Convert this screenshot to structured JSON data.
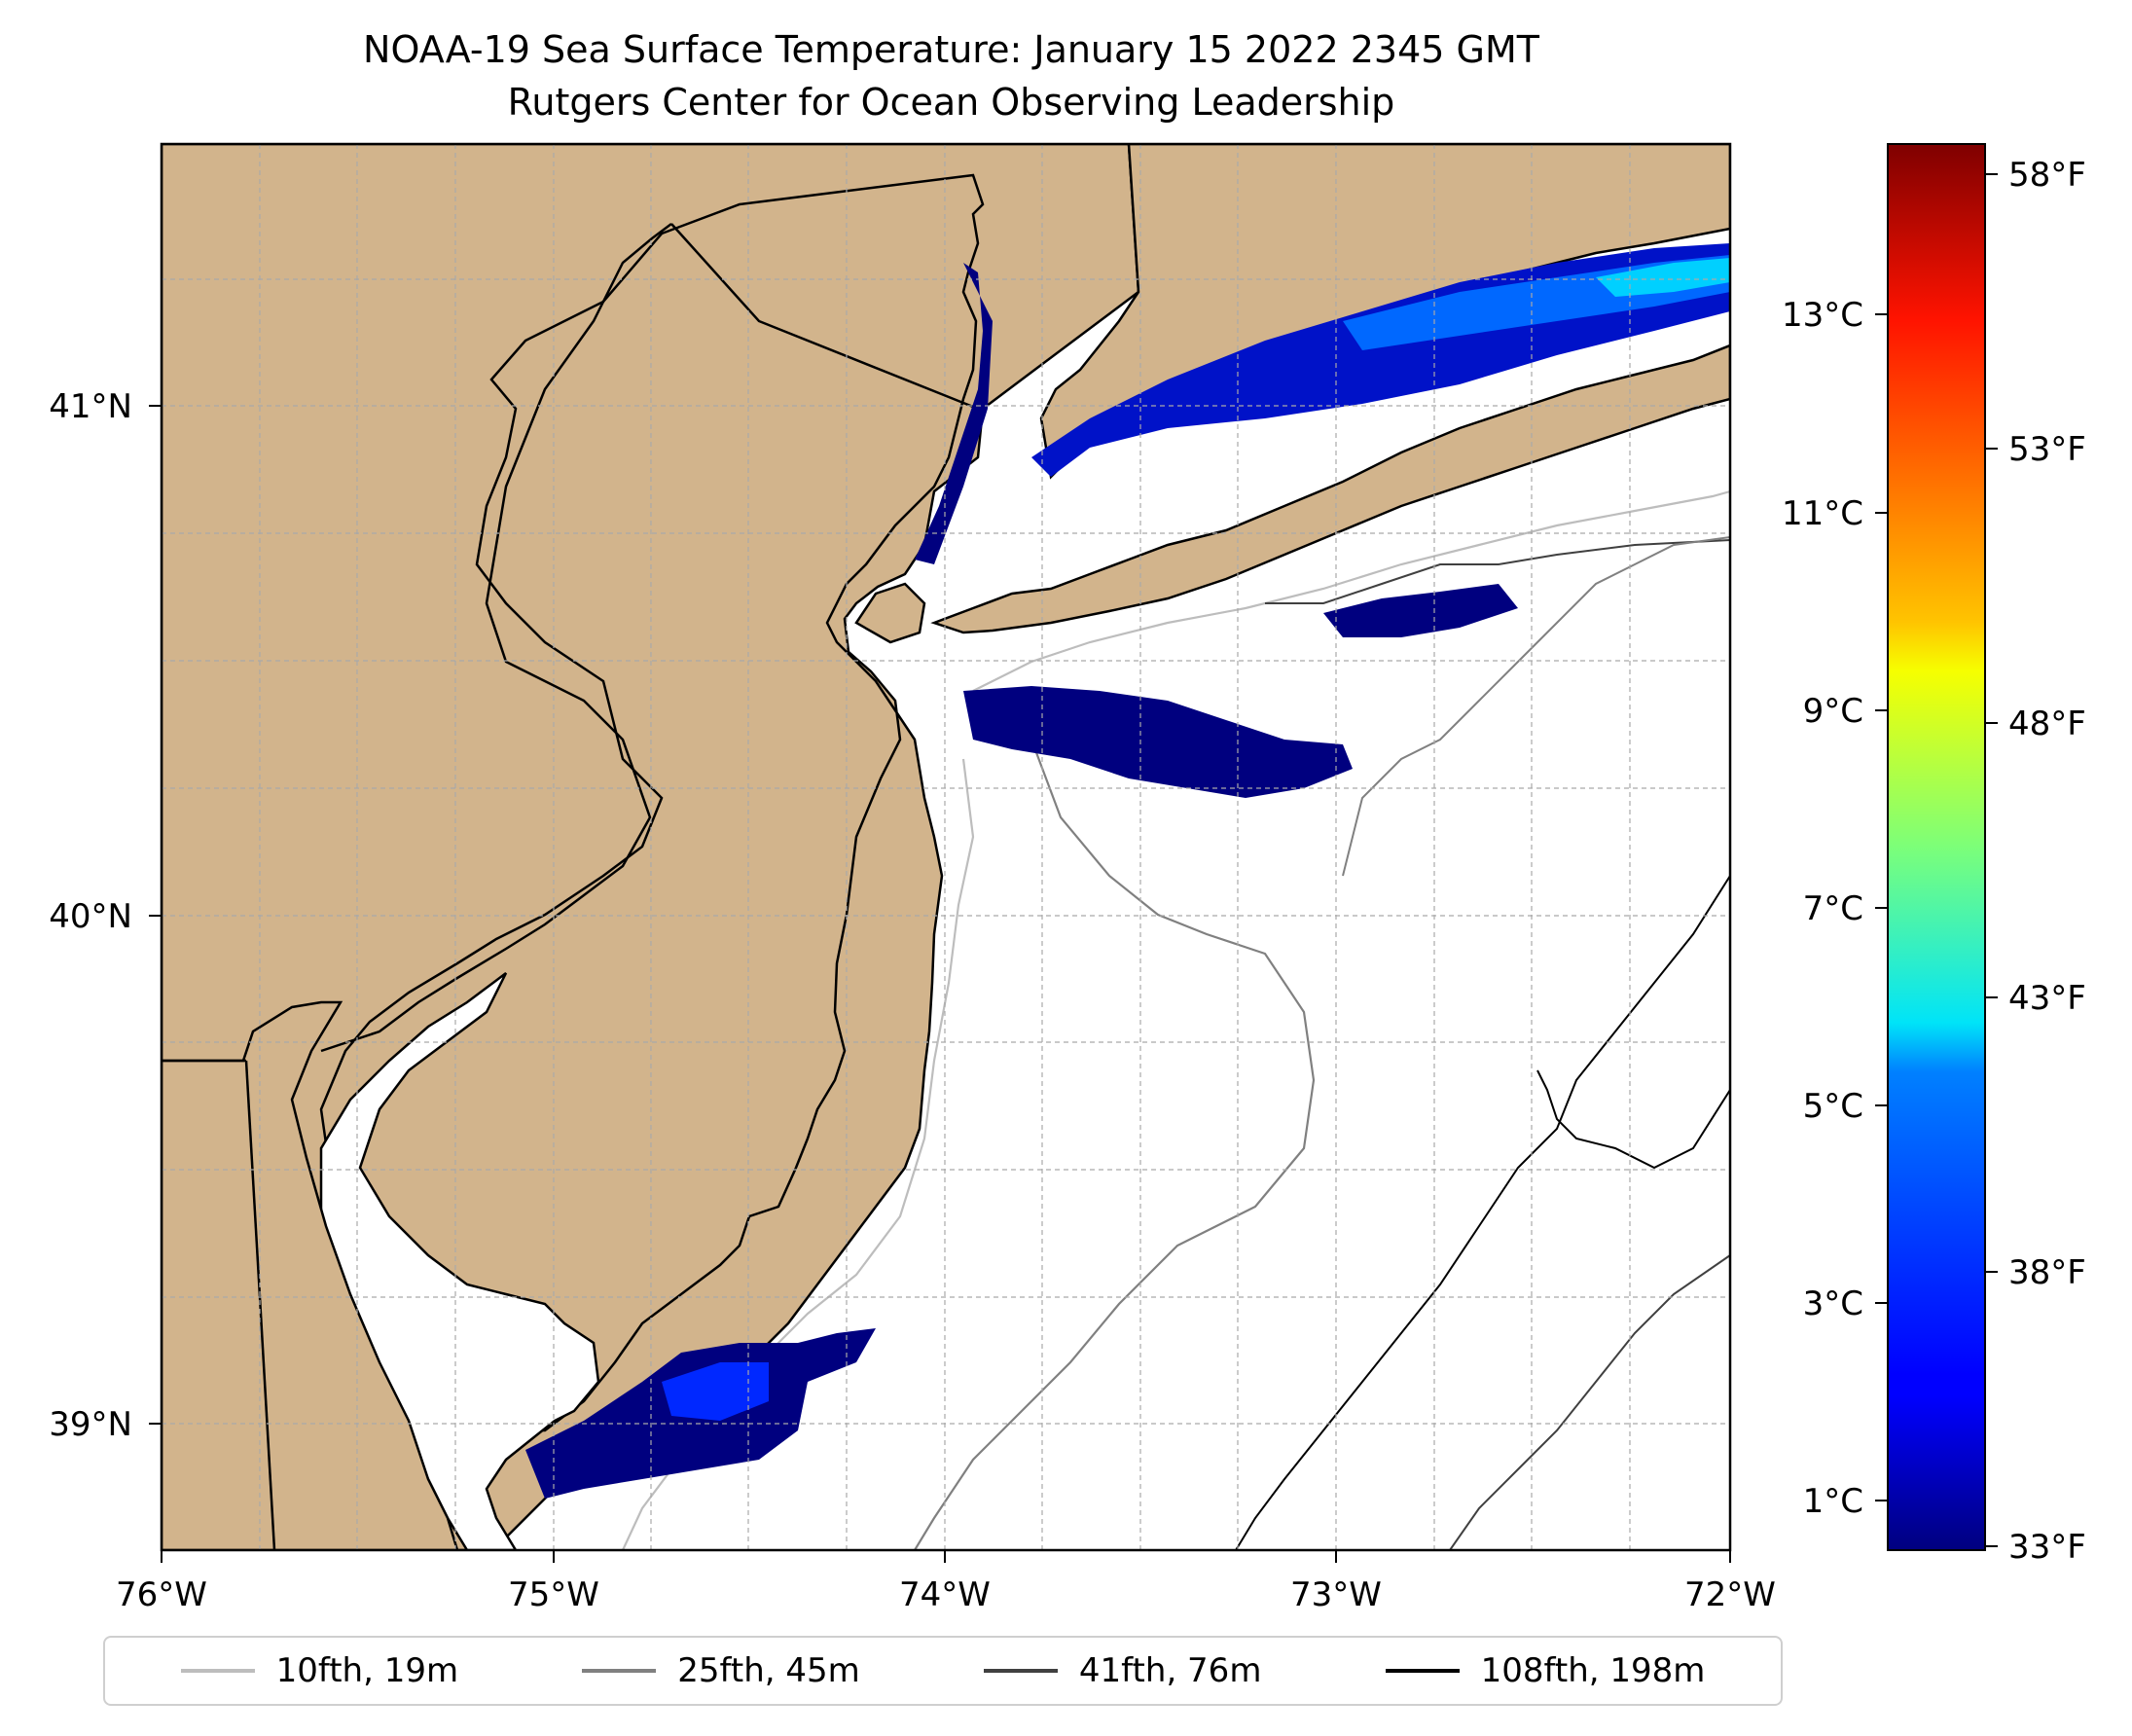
{
  "title": {
    "line1": "NOAA-19 Sea Surface Temperature: January 15 2022 2345 GMT",
    "line2": "Rutgers Center for Ocean Observing Leadership"
  },
  "map": {
    "lon_range": [
      -76,
      -72
    ],
    "lat_range": [
      38.73,
      41.53
    ],
    "x_ticks": [
      "76°W",
      "75°W",
      "74°W",
      "73°W",
      "72°W"
    ],
    "y_ticks": [
      "41°N",
      "40°N",
      "39°N"
    ],
    "land_color": "#d2b48c",
    "ocean_no_data_color": "#ffffff",
    "gridlines": true
  },
  "colorbar": {
    "colormap": "jet",
    "range_c": [
      0.5,
      14.7
    ],
    "celsius_ticks": [
      "13°C",
      "11°C",
      "9°C",
      "7°C",
      "5°C",
      "3°C",
      "1°C"
    ],
    "fahrenheit_ticks": [
      "58°F",
      "53°F",
      "48°F",
      "43°F",
      "38°F",
      "33°F"
    ]
  },
  "legend": {
    "items": [
      {
        "label": "10fth, 19m",
        "color": "#bdbdbd"
      },
      {
        "label": "25fth, 45m",
        "color": "#808080"
      },
      {
        "label": "41fth, 76m",
        "color": "#404040"
      },
      {
        "label": "108fth, 198m",
        "color": "#000000"
      }
    ]
  }
}
